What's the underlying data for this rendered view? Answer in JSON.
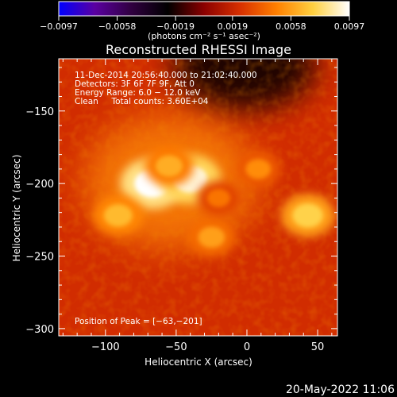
{
  "chart_data": {
    "type": "heatmap",
    "title": "Reconstructed RHESSI Image",
    "xlabel": "Heliocentric X (arcsec)",
    "ylabel": "Heliocentric Y (arcsec)",
    "xlim": [
      -133,
      64
    ],
    "ylim": [
      -305,
      -114
    ],
    "x_ticks": [
      -100,
      -50,
      0,
      50
    ],
    "y_ticks": [
      -150,
      -200,
      -250,
      -300
    ],
    "x_tick_labels": [
      "−100",
      "−50",
      "0",
      "50"
    ],
    "y_tick_labels": [
      "−150",
      "−200",
      "−250",
      "−300"
    ],
    "colorbar": {
      "range": [
        -0.0097,
        0.0097
      ],
      "ticks": [
        -0.0097,
        -0.0058,
        -0.0019,
        0.0019,
        0.0058,
        0.0097
      ],
      "tick_labels": [
        "−0.0097",
        "−0.0058",
        "−0.0019",
        "0.0019",
        "0.0058",
        "0.0097"
      ],
      "units_label": "(photons cm⁻² s⁻¹ asec⁻²)",
      "colormap": [
        "#0000ff",
        "#5a00a0",
        "#300040",
        "#000000",
        "#8b0000",
        "#d83000",
        "#ff8000",
        "#ffd040",
        "#ffffff"
      ]
    },
    "info_lines": [
      "11-Dec-2014 20:56:40.000 to 21:02:40.000",
      "Detectors: 3F 6F 7F 9F, Att 0",
      "Energy Range: 6.0 − 12.0 keV",
      "Clean     Total counts: 3.60E+04"
    ],
    "peak_label": "Position of Peak = [−63,−201]",
    "peak": [
      -63,
      -201
    ],
    "sources": [
      {
        "x": -67,
        "y": -200,
        "value": 0.0097
      },
      {
        "x": -40,
        "y": -197,
        "value": 0.0092
      },
      {
        "x": -55,
        "y": -188,
        "value": 0.0062
      },
      {
        "x": -91,
        "y": -222,
        "value": 0.0066
      },
      {
        "x": -25,
        "y": -237,
        "value": 0.0058
      },
      {
        "x": 8,
        "y": -190,
        "value": 0.0052
      },
      {
        "x": 43,
        "y": -222,
        "value": 0.0074
      },
      {
        "x": -20,
        "y": -210,
        "value": 0.0045
      }
    ],
    "background_level": 0.0022,
    "negative_region": {
      "x": -2,
      "y": -119,
      "value": -0.0022
    }
  },
  "footer": {
    "date": "20-May-2022 11:06"
  }
}
